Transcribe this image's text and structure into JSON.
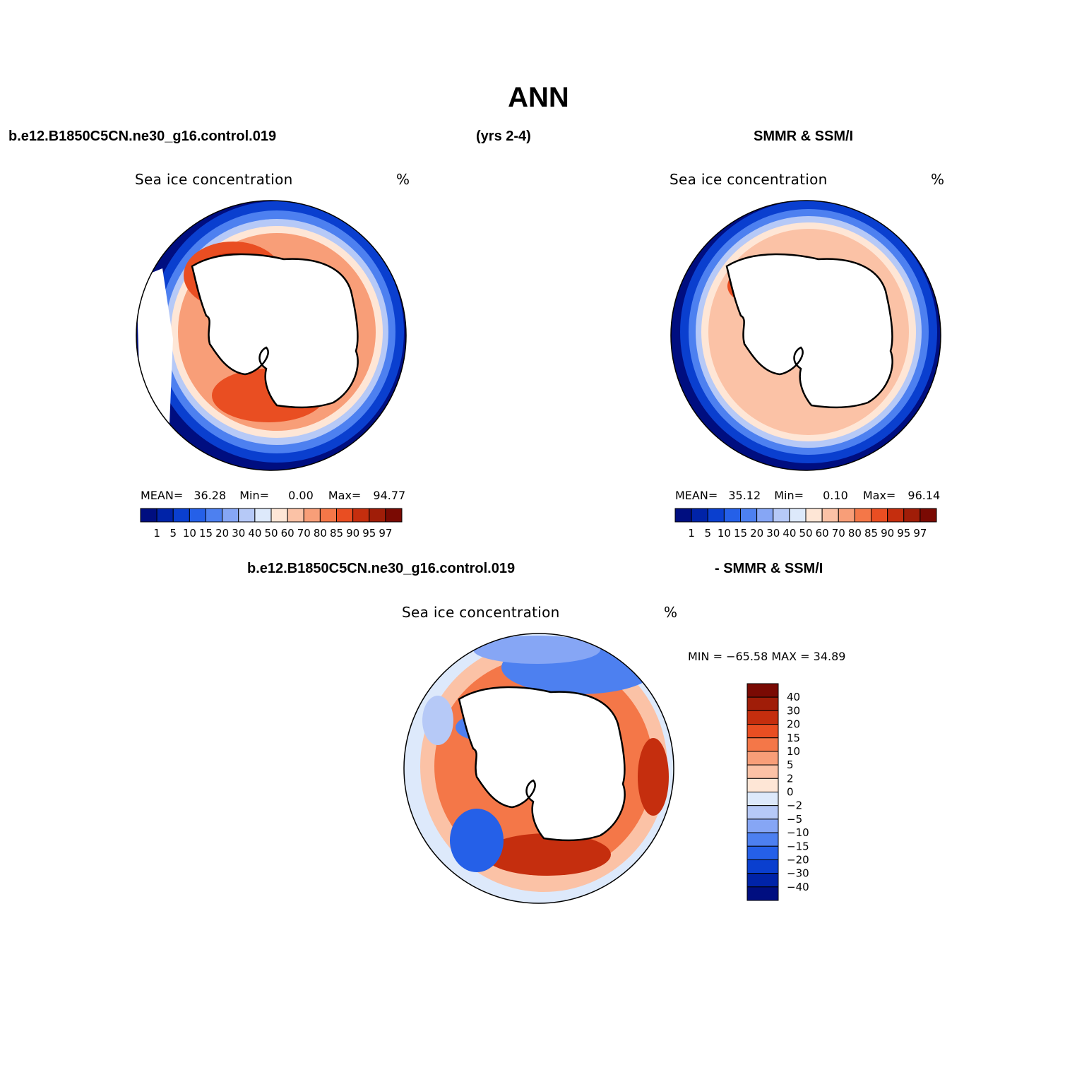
{
  "figure": {
    "title": "ANN",
    "case_name": "b.e12.B1850C5CN.ne30_g16.control.019",
    "years": "(yrs 2-4)",
    "obs_name": "SMMR & SSM/I",
    "diff_case_name": "b.e12.B1850C5CN.ne30_g16.control.019",
    "diff_obs_name": "- SMMR & SSM/I"
  },
  "panels": [
    {
      "id": "model",
      "title": "Sea ice concentration",
      "units": "%",
      "stats": {
        "mean_label": "MEAN=",
        "mean": "36.28",
        "min_label": "Min=",
        "min": "0.00",
        "max_label": "Max=",
        "max": "94.77"
      }
    },
    {
      "id": "obs",
      "title": "Sea ice concentration",
      "units": "%",
      "stats": {
        "mean_label": "MEAN=",
        "mean": "35.12",
        "min_label": "Min=",
        "min": "0.10",
        "max_label": "Max=",
        "max": "96.14"
      }
    },
    {
      "id": "diff",
      "title": "Sea ice concentration",
      "units": "%",
      "stats_text": "MIN = −65.58  MAX =   34.89"
    }
  ],
  "abs_colorbar": {
    "levels": [
      "1",
      "5",
      "10",
      "15",
      "20",
      "30",
      "40",
      "50",
      "60",
      "70",
      "80",
      "85",
      "90",
      "95",
      "97"
    ],
    "colors": [
      "#000e80",
      "#0023a8",
      "#0a3fcf",
      "#2560e8",
      "#4d80f0",
      "#86a6f5",
      "#b6c9f7",
      "#dde9fb",
      "#fee6d6",
      "#fbc2a6",
      "#f89e78",
      "#f47748",
      "#e94e22",
      "#c52e0e",
      "#a01d08",
      "#7a0a03"
    ]
  },
  "diff_colorbar": {
    "levels": [
      "40",
      "30",
      "20",
      "15",
      "10",
      "5",
      "2",
      "0",
      "−2",
      "−5",
      "−10",
      "−15",
      "−20",
      "−30",
      "−40"
    ],
    "colors": [
      "#7a0a03",
      "#a01d08",
      "#c52e0e",
      "#e94e22",
      "#f47748",
      "#f89e78",
      "#fbc2a6",
      "#fee6d6",
      "#dde9fb",
      "#b6c9f7",
      "#86a6f5",
      "#4d80f0",
      "#2560e8",
      "#0a3fcf",
      "#0023a8",
      "#000e80"
    ]
  },
  "map_colors": {
    "deep_blue": "#000e80",
    "mid_blue": "#2560e8",
    "light_blue": "#b6c9f7",
    "pale_blue": "#dde9fb",
    "pale_red": "#fee6d6",
    "light_red": "#fbc2a6",
    "mid_red": "#f47748",
    "deep_red": "#c52e0e"
  }
}
